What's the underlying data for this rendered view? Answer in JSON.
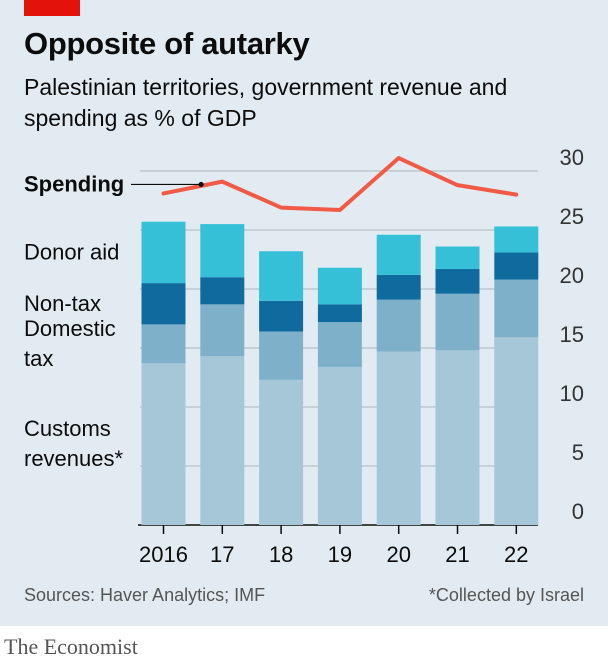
{
  "header": {
    "title": "Opposite of autarky",
    "subtitle": "Palestinian territories, government revenue and spending as % of GDP"
  },
  "footer": {
    "source": "Sources: Haver Analytics; IMF",
    "footnote": "*Collected by Israel",
    "brand": "The Economist"
  },
  "colors": {
    "background": "#e1ebf1",
    "customs": "#a6c7d8",
    "domestic_tax": "#7eb0c9",
    "non_tax": "#0f6b9e",
    "donor_aid": "#36c0d7",
    "spending": "#f05a46",
    "accent_tag": "#e3120b"
  },
  "chart_data": {
    "type": "bar",
    "stacked": true,
    "categories": [
      "2016",
      "17",
      "18",
      "19",
      "20",
      "21",
      "22"
    ],
    "series": [
      {
        "name": "Customs revenues*",
        "label_lines": [
          "Customs",
          "revenues*"
        ],
        "color_key": "customs",
        "values": [
          13.7,
          14.3,
          12.3,
          13.4,
          14.7,
          14.8,
          15.9
        ]
      },
      {
        "name": "Domestic tax",
        "label_lines": [
          "Domestic",
          "tax"
        ],
        "color_key": "domestic_tax",
        "values": [
          3.3,
          4.4,
          4.1,
          3.8,
          4.4,
          4.8,
          4.9
        ]
      },
      {
        "name": "Non-tax",
        "label_lines": [
          "Non-tax"
        ],
        "color_key": "non_tax",
        "values": [
          3.5,
          2.3,
          2.6,
          1.5,
          2.1,
          2.1,
          2.3
        ]
      },
      {
        "name": "Donor aid",
        "label_lines": [
          "Donor aid"
        ],
        "color_key": "donor_aid",
        "values": [
          5.2,
          4.5,
          4.2,
          3.1,
          3.4,
          1.9,
          2.2
        ]
      }
    ],
    "line_series": {
      "name": "Spending",
      "color_key": "spending",
      "values": [
        28.1,
        29.1,
        26.9,
        26.7,
        31.1,
        28.8,
        28.0
      ]
    },
    "ylim": [
      0,
      30
    ],
    "yticks": [
      0,
      5,
      10,
      15,
      20,
      25,
      30
    ],
    "ytick_labels": [
      "0",
      "5",
      "10",
      "15",
      "20",
      "25",
      "30"
    ],
    "grid": true,
    "y_axis_side": "right"
  }
}
